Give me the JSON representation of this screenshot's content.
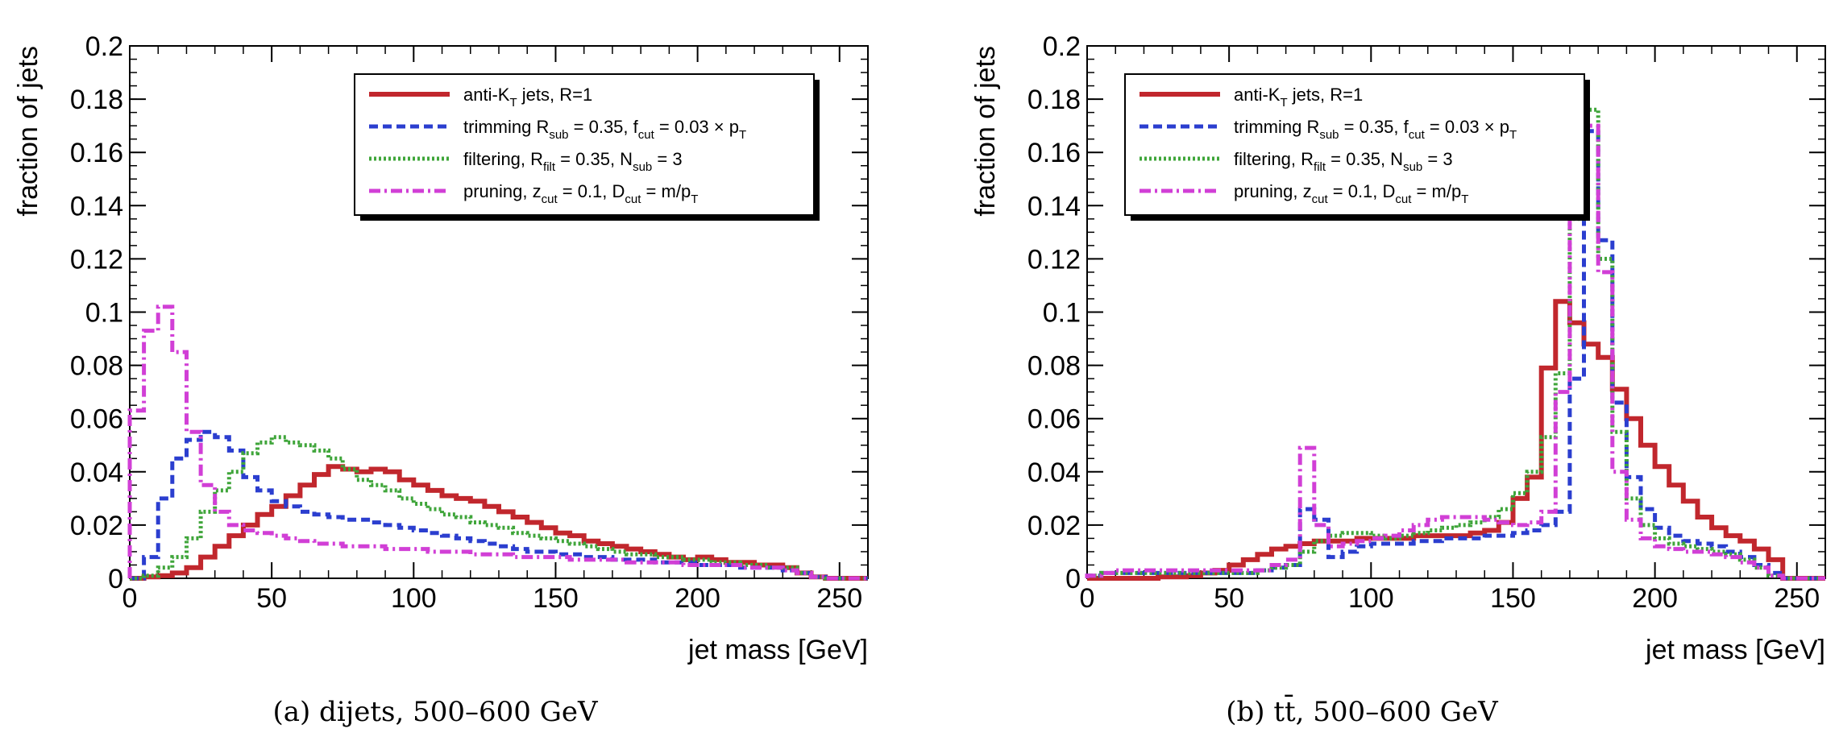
{
  "chart_data": [
    {
      "type": "histogram",
      "caption": "(a) dijets, 500–600 GeV",
      "xlabel": "jet mass [GeV]",
      "ylabel": "fraction of jets",
      "xlim": [
        0,
        260
      ],
      "ylim": [
        0,
        0.2
      ],
      "x_ticks": [
        0,
        50,
        100,
        150,
        200,
        250
      ],
      "y_ticks": [
        0,
        0.02,
        0.04,
        0.06,
        0.08,
        0.1,
        0.12,
        0.14,
        0.16,
        0.18,
        0.2
      ],
      "bin_width": 5,
      "legend_position": "top-right",
      "series": [
        {
          "key": "antikt",
          "legend": "anti-K_T jets, R=1",
          "color": "#c1272d",
          "style": "solid",
          "values": [
            0.0,
            0.0005,
            0.001,
            0.002,
            0.004,
            0.008,
            0.012,
            0.016,
            0.02,
            0.024,
            0.027,
            0.031,
            0.035,
            0.039,
            0.042,
            0.041,
            0.04,
            0.041,
            0.04,
            0.037,
            0.035,
            0.033,
            0.031,
            0.03,
            0.029,
            0.027,
            0.025,
            0.023,
            0.021,
            0.019,
            0.017,
            0.016,
            0.014,
            0.013,
            0.012,
            0.011,
            0.01,
            0.009,
            0.008,
            0.007,
            0.008,
            0.007,
            0.006,
            0.006,
            0.005,
            0.005,
            0.004,
            0.002,
            0.0005,
            0.0,
            0.0,
            0.0
          ]
        },
        {
          "key": "trimming",
          "legend": "trimming R_sub = 0.35, f_cut = 0.03 × p_T",
          "color": "#2b3ecf",
          "style": "dashed",
          "values": [
            0.0,
            0.008,
            0.03,
            0.045,
            0.052,
            0.055,
            0.053,
            0.048,
            0.038,
            0.033,
            0.029,
            0.027,
            0.025,
            0.024,
            0.023,
            0.022,
            0.022,
            0.021,
            0.02,
            0.019,
            0.018,
            0.017,
            0.016,
            0.015,
            0.014,
            0.013,
            0.012,
            0.011,
            0.01,
            0.01,
            0.009,
            0.009,
            0.008,
            0.008,
            0.007,
            0.007,
            0.007,
            0.006,
            0.006,
            0.006,
            0.005,
            0.005,
            0.005,
            0.004,
            0.004,
            0.004,
            0.003,
            0.002,
            0.0005,
            0.0,
            0.0,
            0.0
          ]
        },
        {
          "key": "filtering",
          "legend": "filtering, R_filt = 0.35, N_sub = 3",
          "color": "#3fa53a",
          "style": "dotted",
          "values": [
            0.0,
            0.001,
            0.004,
            0.008,
            0.015,
            0.025,
            0.033,
            0.04,
            0.047,
            0.051,
            0.053,
            0.051,
            0.05,
            0.048,
            0.045,
            0.041,
            0.037,
            0.035,
            0.033,
            0.03,
            0.028,
            0.026,
            0.024,
            0.023,
            0.021,
            0.02,
            0.019,
            0.017,
            0.016,
            0.015,
            0.014,
            0.013,
            0.012,
            0.011,
            0.01,
            0.009,
            0.009,
            0.008,
            0.008,
            0.007,
            0.007,
            0.006,
            0.006,
            0.005,
            0.005,
            0.004,
            0.004,
            0.002,
            0.0005,
            0.0,
            0.0,
            0.0
          ]
        },
        {
          "key": "pruning",
          "legend": "pruning, z_cut = 0.1, D_cut = m/p_T",
          "color": "#d13fd6",
          "style": "dashdot",
          "values": [
            0.063,
            0.093,
            0.102,
            0.085,
            0.055,
            0.035,
            0.025,
            0.02,
            0.018,
            0.017,
            0.016,
            0.015,
            0.014,
            0.013,
            0.013,
            0.012,
            0.012,
            0.012,
            0.011,
            0.011,
            0.011,
            0.01,
            0.01,
            0.01,
            0.009,
            0.009,
            0.009,
            0.008,
            0.008,
            0.008,
            0.008,
            0.007,
            0.007,
            0.007,
            0.007,
            0.006,
            0.006,
            0.006,
            0.006,
            0.005,
            0.005,
            0.005,
            0.005,
            0.004,
            0.004,
            0.004,
            0.003,
            0.002,
            0.0005,
            0.0,
            0.0,
            0.0
          ]
        }
      ]
    },
    {
      "type": "histogram",
      "caption": "(b) tt̄, 500–600 GeV",
      "xlabel": "jet mass [GeV]",
      "ylabel": "fraction of jets",
      "xlim": [
        0,
        260
      ],
      "ylim": [
        0,
        0.2
      ],
      "x_ticks": [
        0,
        50,
        100,
        150,
        200,
        250
      ],
      "y_ticks": [
        0,
        0.02,
        0.04,
        0.06,
        0.08,
        0.1,
        0.12,
        0.14,
        0.16,
        0.18,
        0.2
      ],
      "bin_width": 5,
      "legend_position": "top-left",
      "series": [
        {
          "key": "antikt",
          "legend": "anti-K_T jets, R=1",
          "color": "#c1272d",
          "style": "solid",
          "values": [
            0.0,
            0.0,
            0.0,
            0.0,
            0.0,
            0.0005,
            0.0005,
            0.001,
            0.002,
            0.003,
            0.005,
            0.007,
            0.009,
            0.011,
            0.012,
            0.013,
            0.014,
            0.014,
            0.014,
            0.015,
            0.015,
            0.015,
            0.015,
            0.016,
            0.016,
            0.016,
            0.016,
            0.017,
            0.018,
            0.021,
            0.03,
            0.038,
            0.079,
            0.104,
            0.096,
            0.088,
            0.083,
            0.071,
            0.06,
            0.05,
            0.042,
            0.035,
            0.029,
            0.023,
            0.019,
            0.016,
            0.014,
            0.011,
            0.007,
            0.0,
            0.0,
            0.0
          ]
        },
        {
          "key": "trimming",
          "legend": "trimming R_sub = 0.35, f_cut = 0.03 × p_T",
          "color": "#2b3ecf",
          "style": "dashed",
          "values": [
            0.001,
            0.002,
            0.002,
            0.002,
            0.002,
            0.002,
            0.002,
            0.002,
            0.002,
            0.002,
            0.002,
            0.002,
            0.003,
            0.004,
            0.005,
            0.026,
            0.022,
            0.008,
            0.01,
            0.012,
            0.013,
            0.013,
            0.013,
            0.014,
            0.014,
            0.015,
            0.015,
            0.015,
            0.016,
            0.016,
            0.017,
            0.018,
            0.02,
            0.025,
            0.075,
            0.168,
            0.127,
            0.066,
            0.038,
            0.026,
            0.019,
            0.016,
            0.014,
            0.013,
            0.012,
            0.01,
            0.008,
            0.005,
            0.002,
            0.0,
            0.0,
            0.0
          ]
        },
        {
          "key": "filtering",
          "legend": "filtering, R_filt = 0.35, N_sub = 3",
          "color": "#3fa53a",
          "style": "dotted",
          "values": [
            0.001,
            0.002,
            0.002,
            0.002,
            0.002,
            0.002,
            0.002,
            0.002,
            0.002,
            0.002,
            0.002,
            0.002,
            0.003,
            0.004,
            0.005,
            0.01,
            0.014,
            0.016,
            0.017,
            0.017,
            0.016,
            0.015,
            0.016,
            0.017,
            0.018,
            0.019,
            0.02,
            0.021,
            0.023,
            0.026,
            0.032,
            0.04,
            0.053,
            0.077,
            0.135,
            0.176,
            0.12,
            0.055,
            0.03,
            0.02,
            0.015,
            0.013,
            0.012,
            0.011,
            0.01,
            0.009,
            0.007,
            0.004,
            0.001,
            0.0,
            0.0,
            0.0
          ]
        },
        {
          "key": "pruning",
          "legend": "pruning, z_cut = 0.1, D_cut = m/p_T",
          "color": "#d13fd6",
          "style": "dashdot",
          "values": [
            0.001,
            0.002,
            0.003,
            0.003,
            0.003,
            0.003,
            0.003,
            0.003,
            0.003,
            0.003,
            0.003,
            0.003,
            0.003,
            0.005,
            0.007,
            0.049,
            0.02,
            0.012,
            0.013,
            0.014,
            0.015,
            0.016,
            0.018,
            0.02,
            0.022,
            0.023,
            0.023,
            0.023,
            0.022,
            0.021,
            0.02,
            0.021,
            0.025,
            0.07,
            0.14,
            0.17,
            0.115,
            0.04,
            0.022,
            0.015,
            0.012,
            0.011,
            0.01,
            0.01,
            0.009,
            0.008,
            0.006,
            0.004,
            0.001,
            0.0,
            0.0,
            0.0
          ]
        }
      ]
    }
  ]
}
